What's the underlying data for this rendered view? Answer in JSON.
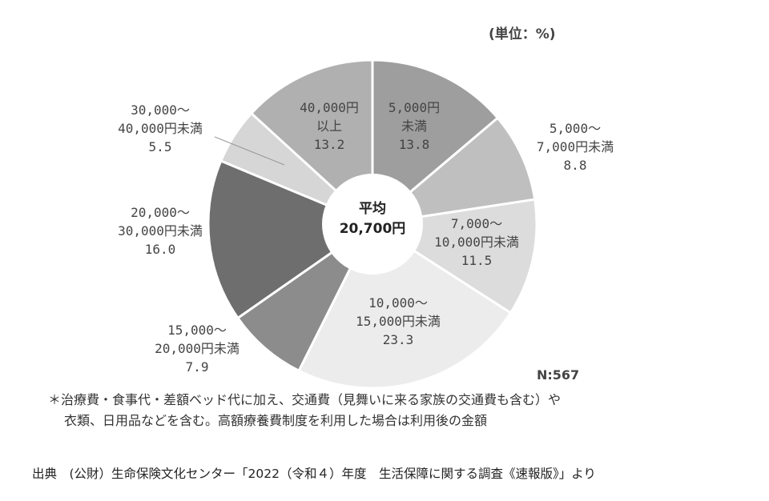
{
  "chart_data": {
    "type": "pie",
    "unit_label": "(単位：%)",
    "center_label": [
      "平均",
      "20,700円"
    ],
    "n_label": "N:567",
    "slices": [
      {
        "label": [
          "5,000円",
          "未満"
        ],
        "value": 13.8,
        "value_text": "13.8",
        "color": "#9e9e9e"
      },
      {
        "label": [
          "5,000～",
          "7,000円未満"
        ],
        "value": 8.8,
        "value_text": "8.8",
        "color": "#bfbfbf"
      },
      {
        "label": [
          "7,000～",
          "10,000円未満"
        ],
        "value": 11.5,
        "value_text": "11.5",
        "color": "#dcdcdc"
      },
      {
        "label": [
          "10,000～",
          "15,000円未満"
        ],
        "value": 23.3,
        "value_text": "23.3",
        "color": "#ececec"
      },
      {
        "label": [
          "15,000～",
          "20,000円未満"
        ],
        "value": 7.9,
        "value_text": "7.9",
        "color": "#8c8c8c"
      },
      {
        "label": [
          "20,000～",
          "30,000円未満"
        ],
        "value": 16.0,
        "value_text": "16.0",
        "color": "#6e6e6e"
      },
      {
        "label": [
          "30,000～",
          "40,000円未満"
        ],
        "value": 5.5,
        "value_text": "5.5",
        "color": "#d6d6d6"
      },
      {
        "label": [
          "40,000円",
          "以上"
        ],
        "value": 13.2,
        "value_text": "13.2",
        "color": "#b0b0b0"
      }
    ]
  },
  "notes": [
    "＊治療費・食事代・差額ベッド代に加え、交通費（見舞いに来る家族の交通費も含む）や",
    "衣類、日用品などを含む。高額療養費制度を利用した場合は利用後の金額"
  ],
  "source": "出典　(公財）生命保険文化センター「2022（令和４）年度　生活保障に関する調査《速報版》」より"
}
